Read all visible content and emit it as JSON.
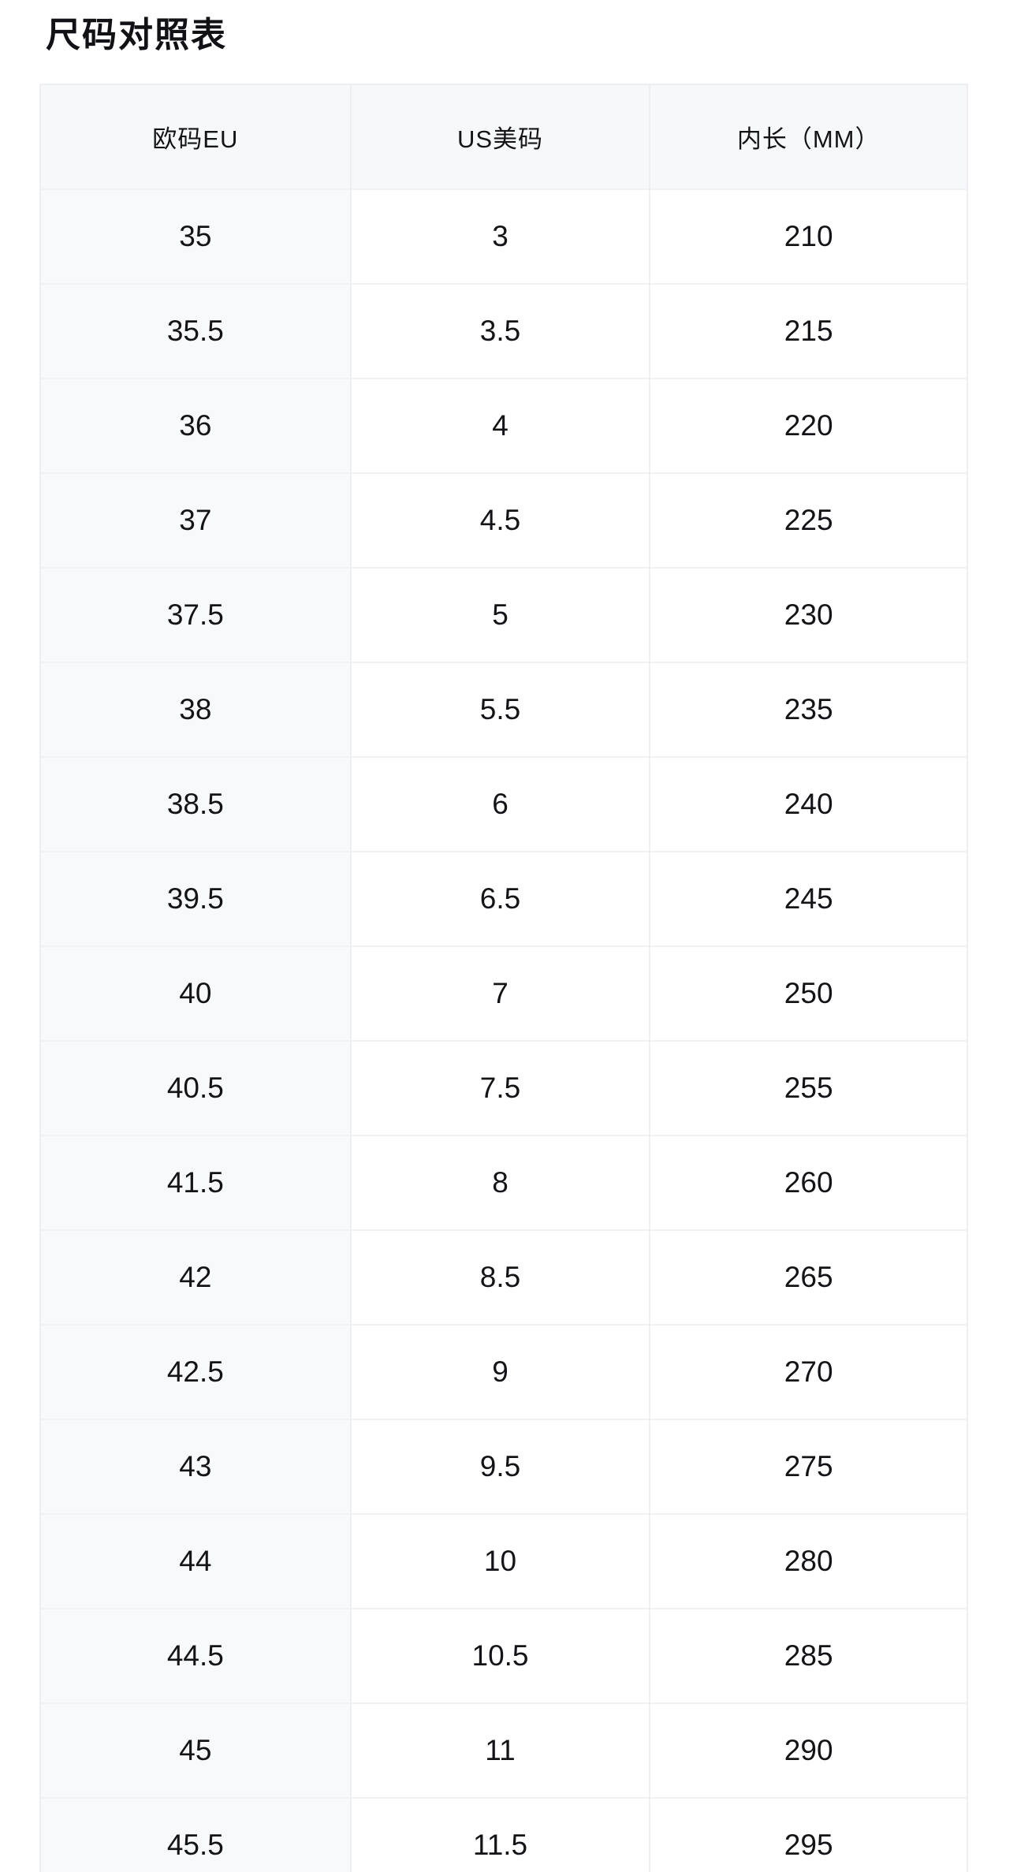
{
  "page": {
    "title": "尺码对照表"
  },
  "table": {
    "columns": [
      "欧码EU",
      "US美码",
      "内长（MM）"
    ],
    "rows": [
      [
        "35",
        "3",
        "210"
      ],
      [
        "35.5",
        "3.5",
        "215"
      ],
      [
        "36",
        "4",
        "220"
      ],
      [
        "37",
        "4.5",
        "225"
      ],
      [
        "37.5",
        "5",
        "230"
      ],
      [
        "38",
        "5.5",
        "235"
      ],
      [
        "38.5",
        "6",
        "240"
      ],
      [
        "39.5",
        "6.5",
        "245"
      ],
      [
        "40",
        "7",
        "250"
      ],
      [
        "40.5",
        "7.5",
        "255"
      ],
      [
        "41.5",
        "8",
        "260"
      ],
      [
        "42",
        "8.5",
        "265"
      ],
      [
        "42.5",
        "9",
        "270"
      ],
      [
        "43",
        "9.5",
        "275"
      ],
      [
        "44",
        "10",
        "280"
      ],
      [
        "44.5",
        "10.5",
        "285"
      ],
      [
        "45",
        "11",
        "290"
      ],
      [
        "45.5",
        "11.5",
        "295"
      ]
    ]
  },
  "colors": {
    "header_bg": "#f7f8fa",
    "first_col_bg": "#f8f9fb",
    "border": "#eceef1",
    "row_border": "#f1f2f5",
    "text": "#141418",
    "scrollbar_thumb": "#a5a5a8"
  }
}
